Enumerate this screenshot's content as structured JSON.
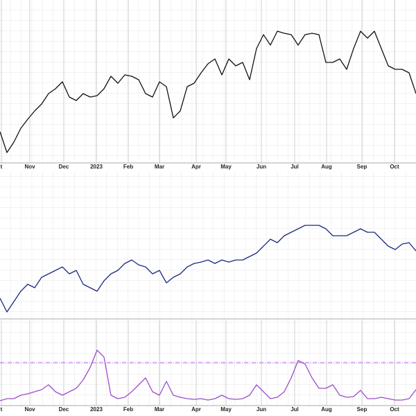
{
  "chart_data": [
    {
      "type": "line",
      "color": "#111111",
      "grid": true,
      "xlim": [
        0,
        600
      ],
      "ylim": [
        0,
        235
      ],
      "x": [
        0,
        10,
        20,
        30,
        40,
        50,
        60,
        70,
        80,
        90,
        100,
        110,
        120,
        130,
        140,
        150,
        160,
        170,
        180,
        190,
        200,
        210,
        220,
        230,
        240,
        250,
        260,
        270,
        280,
        290,
        300,
        310,
        320,
        330,
        340,
        350,
        360,
        370,
        380,
        390,
        400,
        410,
        420,
        430,
        440,
        450,
        460,
        470,
        480,
        490,
        500,
        510,
        520,
        530,
        540,
        550,
        560,
        570,
        580,
        590,
        600
      ],
      "values": [
        45,
        15,
        30,
        50,
        63,
        75,
        85,
        100,
        107,
        117,
        95,
        90,
        100,
        95,
        97,
        107,
        125,
        115,
        127,
        125,
        120,
        100,
        95,
        117,
        110,
        65,
        75,
        110,
        115,
        130,
        143,
        150,
        127,
        150,
        140,
        145,
        120,
        165,
        185,
        170,
        190,
        187,
        185,
        170,
        185,
        187,
        185,
        145,
        145,
        150,
        135,
        165,
        190,
        180,
        190,
        165,
        140,
        135,
        135,
        130,
        100
      ],
      "xticks": [
        {
          "value": 2,
          "label": "t"
        },
        {
          "value": 43,
          "label": "Nov"
        },
        {
          "value": 92,
          "label": "Dec"
        },
        {
          "value": 139,
          "label": "2023"
        },
        {
          "value": 185,
          "label": "Feb"
        },
        {
          "value": 230,
          "label": "Mar"
        },
        {
          "value": 283,
          "label": "Apr"
        },
        {
          "value": 326,
          "label": "May"
        },
        {
          "value": 377,
          "label": "Jun"
        },
        {
          "value": 425,
          "label": "Jul"
        },
        {
          "value": 471,
          "label": "Aug"
        },
        {
          "value": 522,
          "label": "Sep"
        },
        {
          "value": 569,
          "label": "Oct"
        }
      ]
    },
    {
      "type": "line",
      "color": "#1a2a80",
      "grid": true,
      "xlim": [
        0,
        600
      ],
      "ylim": [
        0,
        212
      ],
      "x": [
        0,
        10,
        20,
        30,
        40,
        50,
        60,
        70,
        80,
        90,
        100,
        110,
        120,
        130,
        140,
        150,
        160,
        170,
        180,
        190,
        200,
        210,
        220,
        230,
        240,
        250,
        260,
        270,
        280,
        290,
        300,
        310,
        320,
        330,
        340,
        350,
        360,
        370,
        380,
        390,
        400,
        410,
        420,
        430,
        440,
        450,
        460,
        470,
        480,
        490,
        500,
        510,
        520,
        530,
        540,
        550,
        560,
        570,
        580,
        590,
        600
      ],
      "values": [
        30,
        10,
        25,
        40,
        50,
        45,
        60,
        65,
        70,
        75,
        65,
        70,
        50,
        45,
        40,
        55,
        65,
        70,
        80,
        85,
        78,
        75,
        65,
        70,
        52,
        60,
        65,
        75,
        80,
        82,
        85,
        80,
        85,
        82,
        85,
        85,
        90,
        95,
        105,
        115,
        110,
        120,
        125,
        130,
        135,
        135,
        135,
        130,
        120,
        120,
        120,
        125,
        130,
        125,
        125,
        115,
        105,
        100,
        108,
        110,
        98
      ]
    },
    {
      "type": "line",
      "color": "#9b4dca",
      "grid": true,
      "xlim": [
        0,
        600
      ],
      "ylim": [
        0,
        123
      ],
      "reference": 62,
      "reference_color": "#b060e0",
      "x": [
        0,
        10,
        20,
        30,
        40,
        50,
        60,
        70,
        80,
        90,
        100,
        110,
        120,
        130,
        140,
        150,
        160,
        170,
        180,
        190,
        200,
        210,
        220,
        230,
        240,
        250,
        260,
        270,
        280,
        290,
        300,
        310,
        320,
        330,
        340,
        350,
        360,
        370,
        380,
        390,
        400,
        410,
        420,
        430,
        440,
        450,
        460,
        470,
        480,
        490,
        500,
        510,
        520,
        530,
        540,
        550,
        560,
        570,
        580,
        590,
        600
      ],
      "values": [
        7,
        10,
        10,
        15,
        17,
        20,
        23,
        30,
        20,
        15,
        20,
        25,
        37,
        55,
        80,
        70,
        15,
        10,
        12,
        20,
        30,
        40,
        20,
        15,
        35,
        15,
        12,
        10,
        9,
        10,
        8,
        10,
        15,
        10,
        9,
        10,
        15,
        30,
        20,
        10,
        12,
        20,
        40,
        65,
        60,
        40,
        25,
        25,
        30,
        15,
        12,
        13,
        22,
        10,
        10,
        12,
        10,
        8,
        8,
        10,
        23
      ],
      "xticks": [
        {
          "value": 2,
          "label": "t"
        },
        {
          "value": 43,
          "label": "Nov"
        },
        {
          "value": 92,
          "label": "Dec"
        },
        {
          "value": 139,
          "label": "2023"
        },
        {
          "value": 185,
          "label": "Feb"
        },
        {
          "value": 230,
          "label": "Mar"
        },
        {
          "value": 283,
          "label": "Apr"
        },
        {
          "value": 326,
          "label": "May"
        },
        {
          "value": 377,
          "label": "Jun"
        },
        {
          "value": 425,
          "label": "Jul"
        },
        {
          "value": 471,
          "label": "Aug"
        },
        {
          "value": 522,
          "label": "Sep"
        },
        {
          "value": 569,
          "label": "Oct"
        }
      ]
    }
  ]
}
